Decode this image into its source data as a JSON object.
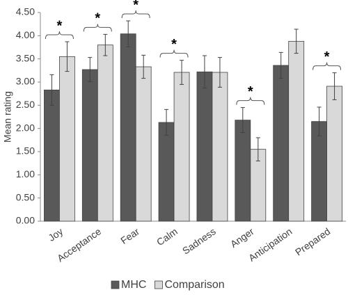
{
  "chart_data": {
    "type": "bar",
    "y_label": "Mean rating",
    "categories": [
      "Joy",
      "Acceptance",
      "Fear",
      "Calm",
      "Sadness",
      "Anger",
      "Anticipation",
      "Prepared"
    ],
    "series": [
      {
        "name": "MHC",
        "color": "#595959",
        "values": [
          2.83,
          3.27,
          4.04,
          2.13,
          3.22,
          2.18,
          3.36,
          2.15
        ],
        "errors": [
          0.33,
          0.26,
          0.28,
          0.28,
          0.35,
          0.27,
          0.28,
          0.31
        ]
      },
      {
        "name": "Comparison",
        "color": "#d9d9d9",
        "values": [
          3.55,
          3.8,
          3.33,
          3.21,
          3.21,
          1.55,
          3.88,
          2.91
        ],
        "errors": [
          0.32,
          0.23,
          0.25,
          0.26,
          0.32,
          0.25,
          0.26,
          0.29
        ]
      }
    ],
    "significance": [
      "*",
      "*",
      "*",
      "*",
      null,
      "*",
      null,
      "*"
    ],
    "ylim": [
      0,
      4.5
    ],
    "yticks": [
      {
        "value": 0,
        "label": "0.00"
      },
      {
        "value": 0.5,
        "label": "0.50"
      },
      {
        "value": 1,
        "label": "1.00"
      },
      {
        "value": 1.5,
        "label": "1.50"
      },
      {
        "value": 2,
        "label": "2.00"
      },
      {
        "value": 2.5,
        "label": "2.50"
      },
      {
        "value": 3,
        "label": "3.00"
      },
      {
        "value": 3.5,
        "label": "3.50"
      },
      {
        "value": 4,
        "label": "4.00"
      },
      {
        "value": 4.5,
        "label": "4.50"
      }
    ],
    "legend": "bottom"
  }
}
